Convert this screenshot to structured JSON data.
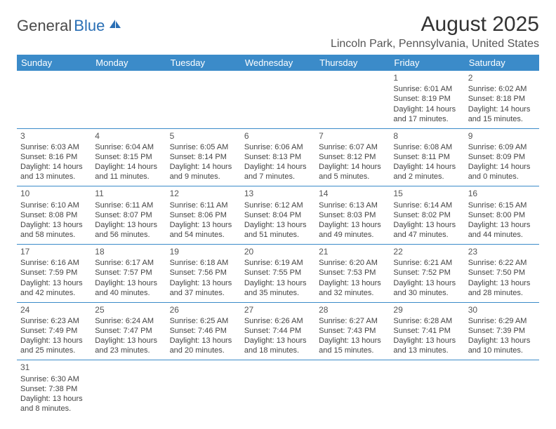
{
  "logo": {
    "part1": "General",
    "part2": "Blue"
  },
  "title": "August 2025",
  "location": "Lincoln Park, Pennsylvania, United States",
  "colors": {
    "header_bg": "#3b8bc9",
    "header_text": "#ffffff",
    "border": "#3b8bc9",
    "logo_gray": "#4a4a4a",
    "logo_blue": "#2a6fb5",
    "text": "#444444"
  },
  "weekdays": [
    "Sunday",
    "Monday",
    "Tuesday",
    "Wednesday",
    "Thursday",
    "Friday",
    "Saturday"
  ],
  "weeks": [
    [
      null,
      null,
      null,
      null,
      null,
      {
        "n": "1",
        "sr": "Sunrise: 6:01 AM",
        "ss": "Sunset: 8:19 PM",
        "dl": "Daylight: 14 hours and 17 minutes."
      },
      {
        "n": "2",
        "sr": "Sunrise: 6:02 AM",
        "ss": "Sunset: 8:18 PM",
        "dl": "Daylight: 14 hours and 15 minutes."
      }
    ],
    [
      {
        "n": "3",
        "sr": "Sunrise: 6:03 AM",
        "ss": "Sunset: 8:16 PM",
        "dl": "Daylight: 14 hours and 13 minutes."
      },
      {
        "n": "4",
        "sr": "Sunrise: 6:04 AM",
        "ss": "Sunset: 8:15 PM",
        "dl": "Daylight: 14 hours and 11 minutes."
      },
      {
        "n": "5",
        "sr": "Sunrise: 6:05 AM",
        "ss": "Sunset: 8:14 PM",
        "dl": "Daylight: 14 hours and 9 minutes."
      },
      {
        "n": "6",
        "sr": "Sunrise: 6:06 AM",
        "ss": "Sunset: 8:13 PM",
        "dl": "Daylight: 14 hours and 7 minutes."
      },
      {
        "n": "7",
        "sr": "Sunrise: 6:07 AM",
        "ss": "Sunset: 8:12 PM",
        "dl": "Daylight: 14 hours and 5 minutes."
      },
      {
        "n": "8",
        "sr": "Sunrise: 6:08 AM",
        "ss": "Sunset: 8:11 PM",
        "dl": "Daylight: 14 hours and 2 minutes."
      },
      {
        "n": "9",
        "sr": "Sunrise: 6:09 AM",
        "ss": "Sunset: 8:09 PM",
        "dl": "Daylight: 14 hours and 0 minutes."
      }
    ],
    [
      {
        "n": "10",
        "sr": "Sunrise: 6:10 AM",
        "ss": "Sunset: 8:08 PM",
        "dl": "Daylight: 13 hours and 58 minutes."
      },
      {
        "n": "11",
        "sr": "Sunrise: 6:11 AM",
        "ss": "Sunset: 8:07 PM",
        "dl": "Daylight: 13 hours and 56 minutes."
      },
      {
        "n": "12",
        "sr": "Sunrise: 6:11 AM",
        "ss": "Sunset: 8:06 PM",
        "dl": "Daylight: 13 hours and 54 minutes."
      },
      {
        "n": "13",
        "sr": "Sunrise: 6:12 AM",
        "ss": "Sunset: 8:04 PM",
        "dl": "Daylight: 13 hours and 51 minutes."
      },
      {
        "n": "14",
        "sr": "Sunrise: 6:13 AM",
        "ss": "Sunset: 8:03 PM",
        "dl": "Daylight: 13 hours and 49 minutes."
      },
      {
        "n": "15",
        "sr": "Sunrise: 6:14 AM",
        "ss": "Sunset: 8:02 PM",
        "dl": "Daylight: 13 hours and 47 minutes."
      },
      {
        "n": "16",
        "sr": "Sunrise: 6:15 AM",
        "ss": "Sunset: 8:00 PM",
        "dl": "Daylight: 13 hours and 44 minutes."
      }
    ],
    [
      {
        "n": "17",
        "sr": "Sunrise: 6:16 AM",
        "ss": "Sunset: 7:59 PM",
        "dl": "Daylight: 13 hours and 42 minutes."
      },
      {
        "n": "18",
        "sr": "Sunrise: 6:17 AM",
        "ss": "Sunset: 7:57 PM",
        "dl": "Daylight: 13 hours and 40 minutes."
      },
      {
        "n": "19",
        "sr": "Sunrise: 6:18 AM",
        "ss": "Sunset: 7:56 PM",
        "dl": "Daylight: 13 hours and 37 minutes."
      },
      {
        "n": "20",
        "sr": "Sunrise: 6:19 AM",
        "ss": "Sunset: 7:55 PM",
        "dl": "Daylight: 13 hours and 35 minutes."
      },
      {
        "n": "21",
        "sr": "Sunrise: 6:20 AM",
        "ss": "Sunset: 7:53 PM",
        "dl": "Daylight: 13 hours and 32 minutes."
      },
      {
        "n": "22",
        "sr": "Sunrise: 6:21 AM",
        "ss": "Sunset: 7:52 PM",
        "dl": "Daylight: 13 hours and 30 minutes."
      },
      {
        "n": "23",
        "sr": "Sunrise: 6:22 AM",
        "ss": "Sunset: 7:50 PM",
        "dl": "Daylight: 13 hours and 28 minutes."
      }
    ],
    [
      {
        "n": "24",
        "sr": "Sunrise: 6:23 AM",
        "ss": "Sunset: 7:49 PM",
        "dl": "Daylight: 13 hours and 25 minutes."
      },
      {
        "n": "25",
        "sr": "Sunrise: 6:24 AM",
        "ss": "Sunset: 7:47 PM",
        "dl": "Daylight: 13 hours and 23 minutes."
      },
      {
        "n": "26",
        "sr": "Sunrise: 6:25 AM",
        "ss": "Sunset: 7:46 PM",
        "dl": "Daylight: 13 hours and 20 minutes."
      },
      {
        "n": "27",
        "sr": "Sunrise: 6:26 AM",
        "ss": "Sunset: 7:44 PM",
        "dl": "Daylight: 13 hours and 18 minutes."
      },
      {
        "n": "28",
        "sr": "Sunrise: 6:27 AM",
        "ss": "Sunset: 7:43 PM",
        "dl": "Daylight: 13 hours and 15 minutes."
      },
      {
        "n": "29",
        "sr": "Sunrise: 6:28 AM",
        "ss": "Sunset: 7:41 PM",
        "dl": "Daylight: 13 hours and 13 minutes."
      },
      {
        "n": "30",
        "sr": "Sunrise: 6:29 AM",
        "ss": "Sunset: 7:39 PM",
        "dl": "Daylight: 13 hours and 10 minutes."
      }
    ],
    [
      {
        "n": "31",
        "sr": "Sunrise: 6:30 AM",
        "ss": "Sunset: 7:38 PM",
        "dl": "Daylight: 13 hours and 8 minutes."
      },
      null,
      null,
      null,
      null,
      null,
      null
    ]
  ]
}
